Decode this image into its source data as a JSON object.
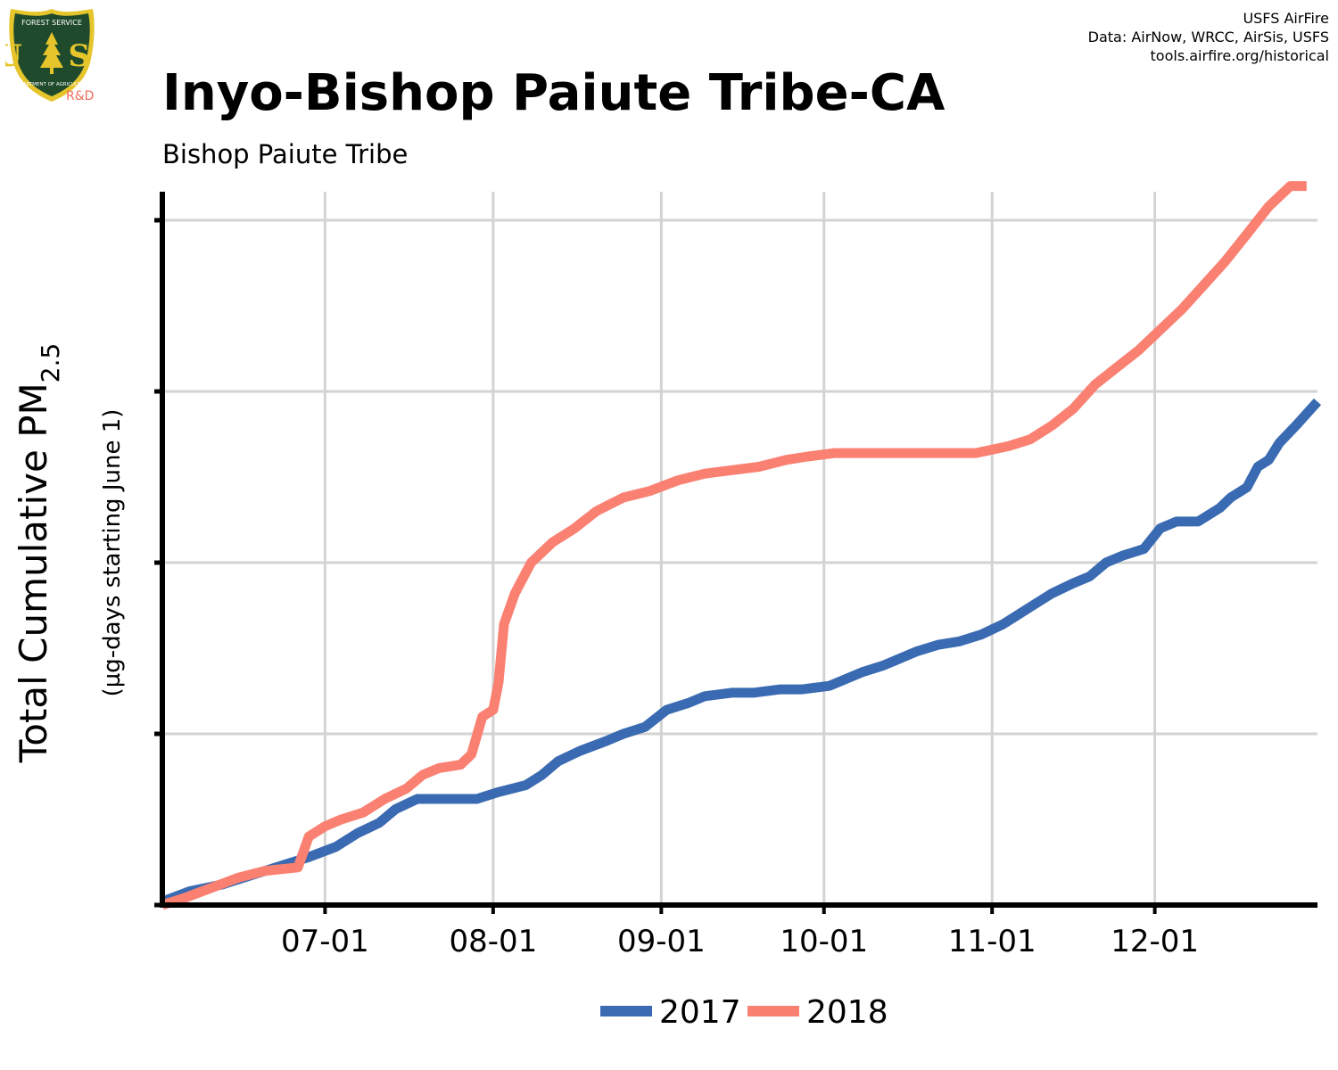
{
  "header": {
    "title": "Inyo-Bishop Paiute Tribe-CA",
    "subtitle": "Bishop Paiute Tribe",
    "credits": [
      "USFS AirFire",
      "Data: AirNow, WRCC, AirSis, USFS",
      "tools.airfire.org/historical"
    ]
  },
  "logo": {
    "top_text": "FOREST SERVICE",
    "letters": "U S",
    "bottom_text": "DEPARTMENT OF AGRICULTURE",
    "badge": "R&D",
    "colors": {
      "shield": "#1f4b2c",
      "trim": "#e5c52b",
      "badge": "#f26d5b"
    }
  },
  "chart_data": {
    "type": "line",
    "ylabel_main": "Total Cumulative PM",
    "ylabel_sub": "2.5",
    "ylabel_units": "(µg-days starting June 1)",
    "x_tick_labels": [
      "07-01",
      "08-01",
      "09-01",
      "10-01",
      "11-01",
      "12-01"
    ],
    "x_tick_dates": [
      "2018-07-01",
      "2018-08-01",
      "2018-09-01",
      "2018-10-01",
      "2018-11-01",
      "2018-12-01"
    ],
    "xlim": [
      "2018-06-01",
      "2018-12-31"
    ],
    "ylim": [
      0,
      200
    ],
    "y_gridlines": [
      0,
      50,
      100,
      150,
      200
    ],
    "y_tick_labels_shown": false,
    "grid": true,
    "legend": "bottom",
    "series": [
      {
        "name": "2017",
        "color": "#3a6ab1",
        "points": [
          [
            "2018-06-01",
            1
          ],
          [
            "2018-06-06",
            4
          ],
          [
            "2018-06-12",
            6
          ],
          [
            "2018-06-18",
            9
          ],
          [
            "2018-06-24",
            12
          ],
          [
            "2018-06-28",
            14
          ],
          [
            "2018-07-03",
            17
          ],
          [
            "2018-07-07",
            21
          ],
          [
            "2018-07-11",
            24
          ],
          [
            "2018-07-14",
            28
          ],
          [
            "2018-07-18",
            31
          ],
          [
            "2018-07-24",
            31
          ],
          [
            "2018-07-29",
            31
          ],
          [
            "2018-08-02",
            33
          ],
          [
            "2018-08-07",
            35
          ],
          [
            "2018-08-10",
            38
          ],
          [
            "2018-08-13",
            42
          ],
          [
            "2018-08-17",
            45
          ],
          [
            "2018-08-22",
            48
          ],
          [
            "2018-08-25",
            50
          ],
          [
            "2018-08-29",
            52
          ],
          [
            "2018-09-02",
            57
          ],
          [
            "2018-09-06",
            59
          ],
          [
            "2018-09-09",
            61
          ],
          [
            "2018-09-14",
            62
          ],
          [
            "2018-09-18",
            62
          ],
          [
            "2018-09-23",
            63
          ],
          [
            "2018-09-27",
            63
          ],
          [
            "2018-10-02",
            64
          ],
          [
            "2018-10-05",
            66
          ],
          [
            "2018-10-08",
            68
          ],
          [
            "2018-10-12",
            70
          ],
          [
            "2018-10-15",
            72
          ],
          [
            "2018-10-18",
            74
          ],
          [
            "2018-10-22",
            76
          ],
          [
            "2018-10-26",
            77
          ],
          [
            "2018-10-30",
            79
          ],
          [
            "2018-11-03",
            82
          ],
          [
            "2018-11-06",
            85
          ],
          [
            "2018-11-09",
            88
          ],
          [
            "2018-11-12",
            91
          ],
          [
            "2018-11-16",
            94
          ],
          [
            "2018-11-19",
            96
          ],
          [
            "2018-11-22",
            100
          ],
          [
            "2018-11-25",
            102
          ],
          [
            "2018-11-29",
            104
          ],
          [
            "2018-12-02",
            110
          ],
          [
            "2018-12-05",
            112
          ],
          [
            "2018-12-09",
            112
          ],
          [
            "2018-12-13",
            116
          ],
          [
            "2018-12-15",
            119
          ],
          [
            "2018-12-18",
            122
          ],
          [
            "2018-12-20",
            128
          ],
          [
            "2018-12-22",
            130
          ],
          [
            "2018-12-24",
            135
          ],
          [
            "2018-12-27",
            140
          ],
          [
            "2018-12-31",
            147
          ]
        ]
      },
      {
        "name": "2018",
        "color": "#fa8072",
        "points": [
          [
            "2018-06-01",
            0
          ],
          [
            "2018-06-05",
            2
          ],
          [
            "2018-06-10",
            5
          ],
          [
            "2018-06-15",
            8
          ],
          [
            "2018-06-20",
            10
          ],
          [
            "2018-06-26",
            11
          ],
          [
            "2018-06-28",
            20
          ],
          [
            "2018-07-01",
            23
          ],
          [
            "2018-07-04",
            25
          ],
          [
            "2018-07-08",
            27
          ],
          [
            "2018-07-12",
            31
          ],
          [
            "2018-07-16",
            34
          ],
          [
            "2018-07-19",
            38
          ],
          [
            "2018-07-22",
            40
          ],
          [
            "2018-07-26",
            41
          ],
          [
            "2018-07-28",
            44
          ],
          [
            "2018-07-30",
            55
          ],
          [
            "2018-08-01",
            57
          ],
          [
            "2018-08-02",
            65
          ],
          [
            "2018-08-03",
            82
          ],
          [
            "2018-08-05",
            91
          ],
          [
            "2018-08-08",
            100
          ],
          [
            "2018-08-12",
            106
          ],
          [
            "2018-08-16",
            110
          ],
          [
            "2018-08-20",
            115
          ],
          [
            "2018-08-25",
            119
          ],
          [
            "2018-08-30",
            121
          ],
          [
            "2018-09-04",
            124
          ],
          [
            "2018-09-09",
            126
          ],
          [
            "2018-09-14",
            127
          ],
          [
            "2018-09-19",
            128
          ],
          [
            "2018-09-24",
            130
          ],
          [
            "2018-09-28",
            131
          ],
          [
            "2018-10-03",
            132
          ],
          [
            "2018-10-08",
            132
          ],
          [
            "2018-10-15",
            132
          ],
          [
            "2018-10-22",
            132
          ],
          [
            "2018-10-29",
            132
          ],
          [
            "2018-11-04",
            134
          ],
          [
            "2018-11-08",
            136
          ],
          [
            "2018-11-12",
            140
          ],
          [
            "2018-11-16",
            145
          ],
          [
            "2018-11-20",
            152
          ],
          [
            "2018-11-24",
            157
          ],
          [
            "2018-11-28",
            162
          ],
          [
            "2018-12-02",
            168
          ],
          [
            "2018-12-06",
            174
          ],
          [
            "2018-12-10",
            181
          ],
          [
            "2018-12-14",
            188
          ],
          [
            "2018-12-18",
            196
          ],
          [
            "2018-12-22",
            204
          ],
          [
            "2018-12-26",
            210
          ],
          [
            "2018-12-29",
            210
          ]
        ]
      }
    ]
  }
}
